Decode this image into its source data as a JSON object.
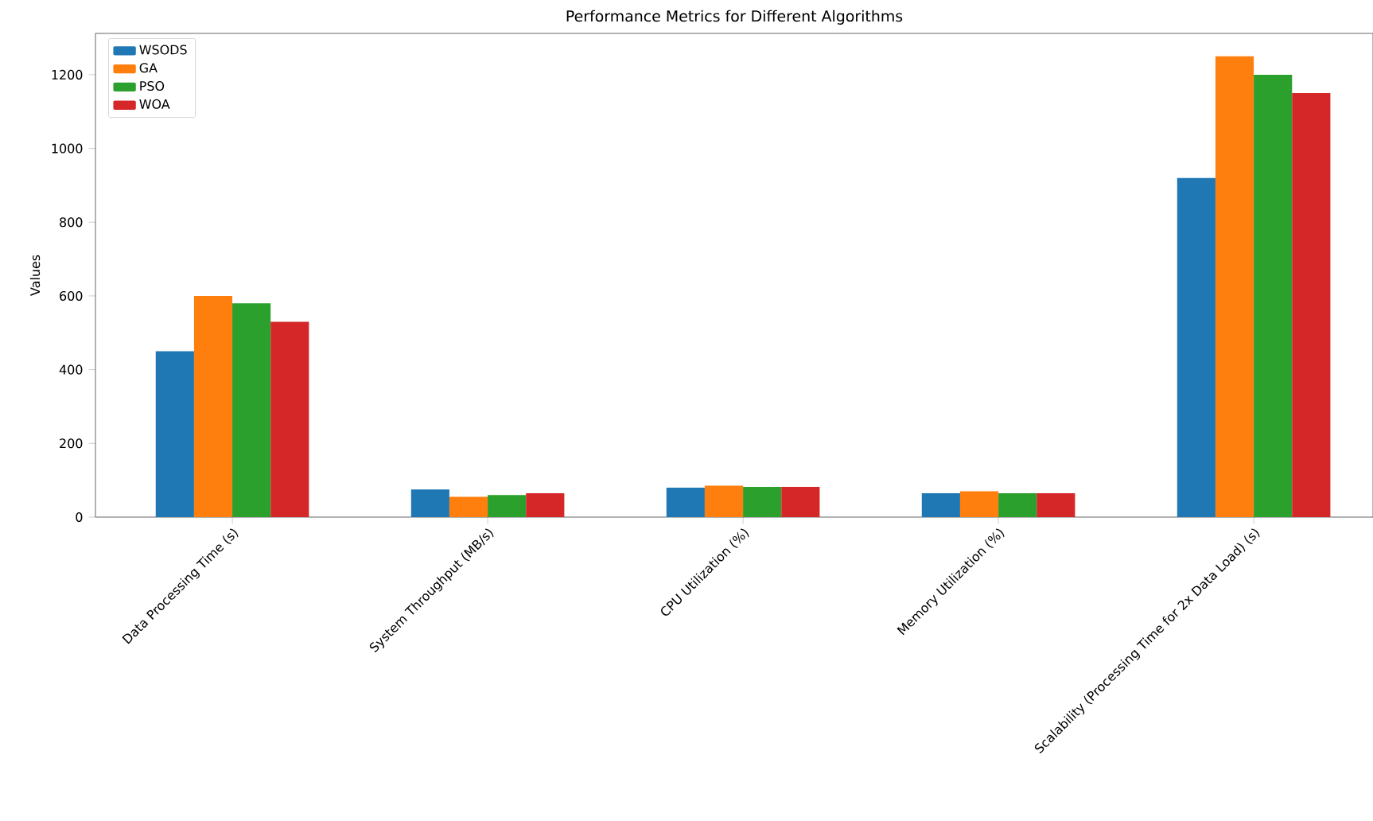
{
  "chart_data": {
    "type": "bar",
    "title": "Performance Metrics for Different Algorithms",
    "ylabel": "Values",
    "categories": [
      "Data Processing Time (s)",
      "System Throughput (MB/s)",
      "CPU Utilization (%)",
      "Memory Utilization (%)",
      "Scalability (Processing Time for 2x Data Load) (s)"
    ],
    "series": [
      {
        "name": "WSODS",
        "color": "#1f77b4",
        "values": [
          450,
          75,
          80,
          65,
          920
        ]
      },
      {
        "name": "GA",
        "color": "#ff7f0e",
        "values": [
          600,
          55,
          85,
          70,
          1250
        ]
      },
      {
        "name": "PSO",
        "color": "#2ca02c",
        "values": [
          580,
          60,
          82,
          65,
          1200
        ]
      },
      {
        "name": "WOA",
        "color": "#d62728",
        "values": [
          530,
          65,
          82,
          65,
          1150
        ]
      }
    ],
    "ylim": [
      0,
      1312
    ],
    "yticks": [
      0,
      200,
      400,
      600,
      800,
      1000,
      1200
    ],
    "legend": "top left",
    "grid": false
  }
}
